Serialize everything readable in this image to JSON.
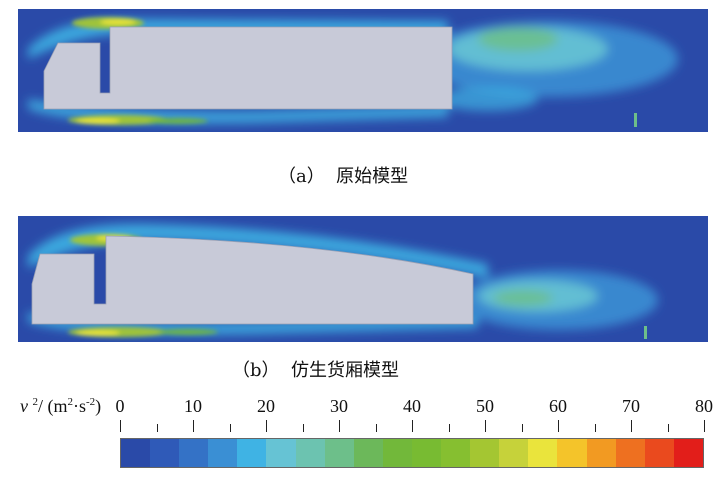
{
  "panels": [
    {
      "id": "a",
      "caption": "（a）  原始模型",
      "label": "(a) 原始模型"
    },
    {
      "id": "b",
      "caption": "（b）  仿生货厢模型",
      "label": "(b) 仿生货厢模型"
    }
  ],
  "legend": {
    "variable": "v",
    "exponent": "2",
    "unit_prefix": "/ (m",
    "unit_m_exp": "2",
    "unit_mid": "·s",
    "unit_s_exp": "-2",
    "unit_suffix": ")",
    "ticks": [
      "0",
      "10",
      "20",
      "30",
      "40",
      "50",
      "60",
      "70",
      "80"
    ],
    "range": [
      0,
      80
    ],
    "colors": [
      "#2a4aa8",
      "#2f5ab8",
      "#3472c6",
      "#3a8fd4",
      "#3fb3e4",
      "#66c3d4",
      "#6cc3b0",
      "#6dbf8a",
      "#6cb85a",
      "#72b83a",
      "#78bb32",
      "#86bf30",
      "#a4c632",
      "#c6d23a",
      "#eae43c",
      "#f4c42a",
      "#f29a22",
      "#ee7020",
      "#ea4a1e",
      "#e21e1a"
    ]
  },
  "colors": {
    "field_background": "#2a4aa8",
    "body": "#c8cad8",
    "body_edge": "#9aa0b4"
  }
}
